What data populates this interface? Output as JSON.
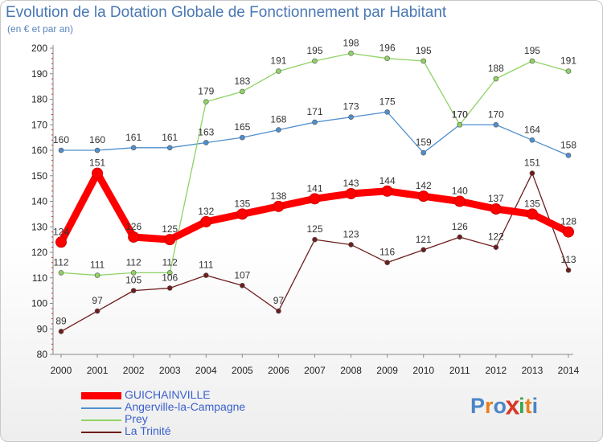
{
  "header": {
    "title": "Evolution de la Dotation Globale de Fonctionnement par Habitant",
    "subtitle": "(en € et par an)"
  },
  "logo": {
    "text": "Proxiti",
    "letter_colors": [
      "#4a86c8",
      "#e8801f",
      "#4a86c8",
      "#d83a2a",
      "#3ba54a",
      "#e8801f",
      "#4a86c8"
    ]
  },
  "chart_data": {
    "type": "line",
    "x": [
      2000,
      2001,
      2002,
      2003,
      2004,
      2005,
      2006,
      2007,
      2008,
      2009,
      2010,
      2011,
      2012,
      2013,
      2014
    ],
    "ylim": [
      80,
      200
    ],
    "yticks": [
      80,
      90,
      100,
      110,
      120,
      130,
      140,
      150,
      160,
      170,
      180,
      190,
      200
    ],
    "grid": false,
    "legend_position": "bottom-left",
    "series": [
      {
        "name": "GUICHAINVILLE",
        "color": "#ff0000",
        "emphasis": true,
        "values": [
          124,
          151,
          126,
          125,
          132,
          135,
          138,
          141,
          143,
          144,
          142,
          140,
          137,
          135,
          128
        ]
      },
      {
        "name": "Angerville-la-Campagne",
        "color": "#4f8fce",
        "values": [
          160,
          160,
          161,
          161,
          163,
          165,
          168,
          171,
          173,
          175,
          159,
          170,
          170,
          164,
          158
        ]
      },
      {
        "name": "Prey",
        "color": "#8fd266",
        "values": [
          112,
          111,
          112,
          112,
          179,
          183,
          191,
          195,
          198,
          196,
          195,
          170,
          188,
          195,
          191
        ]
      },
      {
        "name": "La Trinité",
        "color": "#6e1d1d",
        "values": [
          89,
          97,
          105,
          106,
          111,
          107,
          97,
          125,
          123,
          116,
          121,
          126,
          122,
          151,
          113
        ]
      }
    ]
  }
}
